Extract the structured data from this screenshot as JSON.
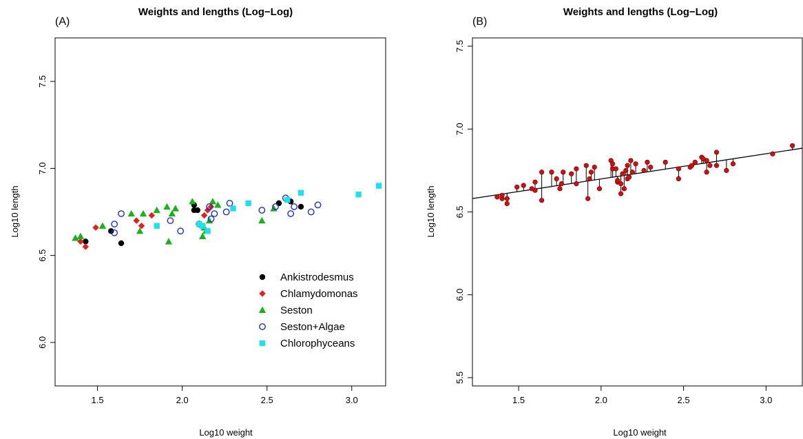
{
  "chart_data": [
    {
      "panel_label": "(A)",
      "type": "scatter",
      "title": "Weights and lengths (Log−Log)",
      "xlabel": "Log10 weight",
      "ylabel": "Log10 length",
      "xlim": [
        1.25,
        3.2
      ],
      "ylim": [
        5.75,
        7.75
      ],
      "xticks": [
        "1.5",
        "2.0",
        "2.5",
        "3.0"
      ],
      "yticks": [
        "6.0",
        "6.5",
        "7.0",
        "7.5"
      ],
      "xtick_values": [
        1.5,
        2.0,
        2.5,
        3.0
      ],
      "ytick_values": [
        6.0,
        6.5,
        7.0,
        7.5
      ],
      "grid": false,
      "legend_position": "bottom-right",
      "series": [
        {
          "name": "Ankistrodesmus",
          "marker": "circle-filled",
          "color": "#000000",
          "points": [
            [
              1.43,
              6.58
            ],
            [
              1.58,
              6.64
            ],
            [
              1.64,
              6.57
            ],
            [
              2.07,
              6.79
            ],
            [
              2.07,
              6.76
            ],
            [
              2.09,
              6.76
            ],
            [
              2.57,
              6.8
            ],
            [
              2.64,
              6.81
            ],
            [
              2.7,
              6.78
            ]
          ]
        },
        {
          "name": "Chlamydomonas",
          "marker": "diamond-filled",
          "color": "#e0201c",
          "points": [
            [
              1.4,
              6.58
            ],
            [
              1.43,
              6.55
            ],
            [
              1.49,
              6.66
            ],
            [
              1.73,
              6.7
            ],
            [
              1.76,
              6.67
            ],
            [
              1.82,
              6.73
            ],
            [
              2.13,
              6.73
            ],
            [
              2.15,
              6.76
            ],
            [
              2.17,
              6.78
            ]
          ]
        },
        {
          "name": "Seston",
          "marker": "triangle-filled",
          "color": "#1bb11b",
          "points": [
            [
              1.37,
              6.6
            ],
            [
              1.4,
              6.61
            ],
            [
              1.53,
              6.67
            ],
            [
              1.7,
              6.74
            ],
            [
              1.75,
              6.64
            ],
            [
              1.77,
              6.74
            ],
            [
              1.85,
              6.76
            ],
            [
              1.91,
              6.78
            ],
            [
              1.92,
              6.58
            ],
            [
              1.94,
              6.74
            ],
            [
              1.96,
              6.77
            ],
            [
              2.06,
              6.81
            ],
            [
              2.12,
              6.61
            ],
            [
              2.13,
              6.66
            ],
            [
              2.14,
              6.64
            ],
            [
              2.16,
              6.7
            ],
            [
              2.18,
              6.81
            ],
            [
              2.21,
              6.79
            ],
            [
              2.47,
              6.7
            ],
            [
              2.54,
              6.77
            ]
          ]
        },
        {
          "name": "Seston+Algae",
          "marker": "circle-open",
          "color": "#1f2ecc",
          "points": [
            [
              1.6,
              6.68
            ],
            [
              1.6,
              6.63
            ],
            [
              1.64,
              6.74
            ],
            [
              1.93,
              6.7
            ],
            [
              1.99,
              6.64
            ],
            [
              2.1,
              6.68
            ],
            [
              2.16,
              6.78
            ],
            [
              2.17,
              6.71
            ],
            [
              2.19,
              6.74
            ],
            [
              2.26,
              6.75
            ],
            [
              2.28,
              6.8
            ],
            [
              2.47,
              6.76
            ],
            [
              2.55,
              6.78
            ],
            [
              2.61,
              6.83
            ],
            [
              2.64,
              6.74
            ],
            [
              2.66,
              6.78
            ],
            [
              2.76,
              6.75
            ],
            [
              2.8,
              6.79
            ]
          ]
        },
        {
          "name": "Chlorophyceans",
          "marker": "square-filled",
          "color": "#20e0ee",
          "points": [
            [
              1.85,
              6.67
            ],
            [
              2.1,
              6.68
            ],
            [
              2.12,
              6.67
            ],
            [
              2.15,
              6.64
            ],
            [
              2.3,
              6.77
            ],
            [
              2.39,
              6.8
            ],
            [
              2.62,
              6.82
            ],
            [
              2.7,
              6.86
            ],
            [
              3.04,
              6.85
            ],
            [
              3.16,
              6.9
            ]
          ]
        }
      ]
    },
    {
      "panel_label": "(B)",
      "type": "scatter",
      "title": "Weights and lengths (Log−Log)",
      "xlabel": "Log10 weight",
      "ylabel": "Log10 length",
      "xlim": [
        1.22,
        3.22
      ],
      "ylim": [
        5.45,
        7.55
      ],
      "xticks": [
        "1.5",
        "2.0",
        "2.5",
        "3.0"
      ],
      "yticks": [
        "5.5",
        "6.0",
        "6.5",
        "7.0",
        "7.5"
      ],
      "xtick_values": [
        1.5,
        2.0,
        2.5,
        3.0
      ],
      "ytick_values": [
        5.5,
        6.0,
        6.5,
        7.0,
        7.5
      ],
      "grid": false,
      "point_color": "#d01010",
      "fit_line": {
        "intercept": 6.395,
        "slope": 0.152
      },
      "residual_lines": true,
      "points": [
        [
          1.37,
          6.59
        ],
        [
          1.4,
          6.58
        ],
        [
          1.4,
          6.6
        ],
        [
          1.43,
          6.58
        ],
        [
          1.43,
          6.55
        ],
        [
          1.49,
          6.65
        ],
        [
          1.53,
          6.66
        ],
        [
          1.58,
          6.64
        ],
        [
          1.6,
          6.68
        ],
        [
          1.6,
          6.63
        ],
        [
          1.64,
          6.57
        ],
        [
          1.64,
          6.74
        ],
        [
          1.7,
          6.74
        ],
        [
          1.73,
          6.7
        ],
        [
          1.75,
          6.64
        ],
        [
          1.76,
          6.67
        ],
        [
          1.77,
          6.74
        ],
        [
          1.82,
          6.73
        ],
        [
          1.85,
          6.76
        ],
        [
          1.85,
          6.67
        ],
        [
          1.91,
          6.78
        ],
        [
          1.92,
          6.58
        ],
        [
          1.93,
          6.7
        ],
        [
          1.94,
          6.74
        ],
        [
          1.96,
          6.77
        ],
        [
          1.99,
          6.64
        ],
        [
          2.06,
          6.81
        ],
        [
          2.07,
          6.79
        ],
        [
          2.07,
          6.76
        ],
        [
          2.09,
          6.76
        ],
        [
          2.1,
          6.68
        ],
        [
          2.1,
          6.69
        ],
        [
          2.12,
          6.61
        ],
        [
          2.12,
          6.67
        ],
        [
          2.13,
          6.73
        ],
        [
          2.14,
          6.64
        ],
        [
          2.15,
          6.75
        ],
        [
          2.16,
          6.7
        ],
        [
          2.16,
          6.78
        ],
        [
          2.17,
          6.71
        ],
        [
          2.18,
          6.81
        ],
        [
          2.19,
          6.74
        ],
        [
          2.21,
          6.79
        ],
        [
          2.26,
          6.75
        ],
        [
          2.28,
          6.8
        ],
        [
          2.3,
          6.77
        ],
        [
          2.39,
          6.8
        ],
        [
          2.47,
          6.7
        ],
        [
          2.47,
          6.76
        ],
        [
          2.54,
          6.77
        ],
        [
          2.55,
          6.78
        ],
        [
          2.57,
          6.8
        ],
        [
          2.61,
          6.83
        ],
        [
          2.62,
          6.82
        ],
        [
          2.64,
          6.81
        ],
        [
          2.64,
          6.74
        ],
        [
          2.66,
          6.78
        ],
        [
          2.7,
          6.78
        ],
        [
          2.7,
          6.86
        ],
        [
          2.76,
          6.75
        ],
        [
          2.8,
          6.79
        ],
        [
          3.04,
          6.85
        ],
        [
          3.16,
          6.9
        ]
      ]
    }
  ]
}
